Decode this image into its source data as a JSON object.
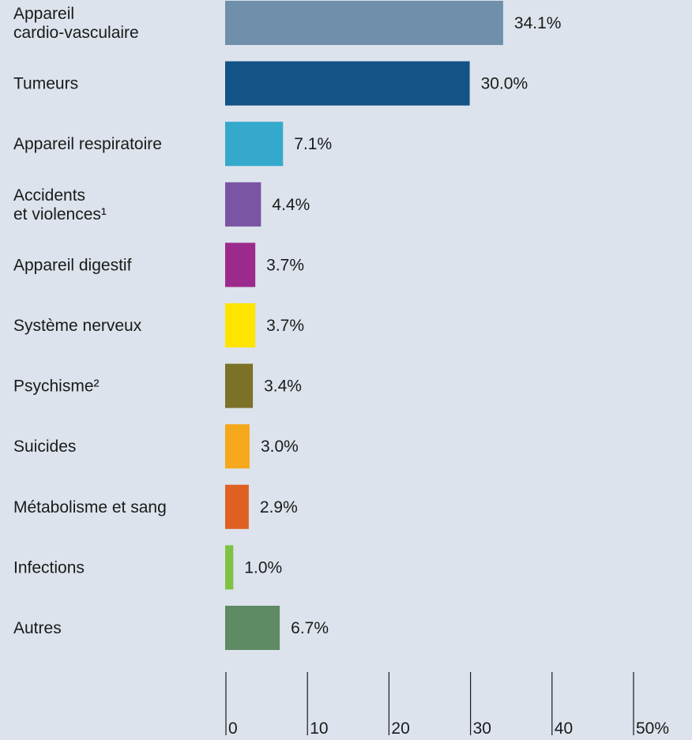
{
  "chart_data": {
    "type": "bar",
    "orientation": "horizontal",
    "categories": [
      [
        "Appareil",
        "cardio-vasculaire"
      ],
      [
        "Tumeurs"
      ],
      [
        "Appareil respiratoire"
      ],
      [
        "Accidents",
        "et violences¹"
      ],
      [
        "Appareil digestif"
      ],
      [
        "Système nerveux"
      ],
      [
        "Psychisme²"
      ],
      [
        "Suicides"
      ],
      [
        "Métabolisme et sang"
      ],
      [
        "Infections"
      ],
      [
        "Autres"
      ]
    ],
    "values": [
      34.1,
      30.0,
      7.1,
      4.4,
      3.7,
      3.7,
      3.4,
      3.0,
      2.9,
      1.0,
      6.7
    ],
    "value_labels": [
      "34.1%",
      "30.0%",
      "7.1%",
      "4.4%",
      "3.7%",
      "3.7%",
      "3.4%",
      "3.0%",
      "2.9%",
      "1.0%",
      "6.7%"
    ],
    "colors": [
      "#6f8fab",
      "#135386",
      "#35a9cc",
      "#7b55a3",
      "#9c2a8c",
      "#ffe400",
      "#7b7127",
      "#f6a81c",
      "#de6123",
      "#7fc242",
      "#5e8a64"
    ],
    "xlim": [
      0,
      50
    ],
    "x_ticks": [
      0,
      10,
      20,
      30,
      40,
      50
    ],
    "x_tick_labels": [
      "0",
      "10",
      "20",
      "30",
      "40",
      "50%"
    ],
    "grid": false,
    "background": "#dce3ec"
  }
}
